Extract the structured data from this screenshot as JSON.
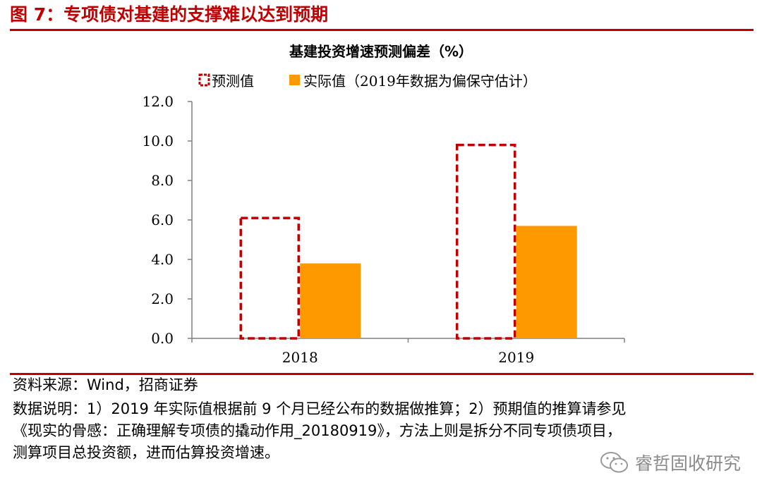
{
  "figure_title": "图 7：专项债对基建的支撑难以达到预期",
  "chart_data": {
    "type": "bar",
    "title": "基建投资增速预测偏差（%）",
    "categories": [
      "2018",
      "2019"
    ],
    "series": [
      {
        "name": "预测值",
        "values": [
          6.1,
          9.8
        ],
        "style": "dashed-outline",
        "color": "#c00000"
      },
      {
        "name": "实际值（2019年数据为偏保守估计）",
        "values": [
          3.8,
          5.7
        ],
        "style": "filled",
        "color": "#ff9900"
      }
    ],
    "ylim": [
      0,
      12
    ],
    "yticks": [
      "0.0",
      "2.0",
      "4.0",
      "6.0",
      "8.0",
      "10.0",
      "12.0"
    ],
    "legend_position": "top",
    "grid": false
  },
  "footer": {
    "source": "资料来源：Wind，招商证券",
    "note_line1": "数据说明：1）2019 年实际值根据前 9 个月已经公布的数据做推算；2）预期值的推算请参见",
    "note_line2": "《现实的骨感：正确理解专项债的撬动作用_20180919》，方法上则是拆分不同专项债项目，",
    "note_line3": "测算项目总投资额，进而估算投资增速。"
  },
  "watermark": "睿哲固收研究"
}
